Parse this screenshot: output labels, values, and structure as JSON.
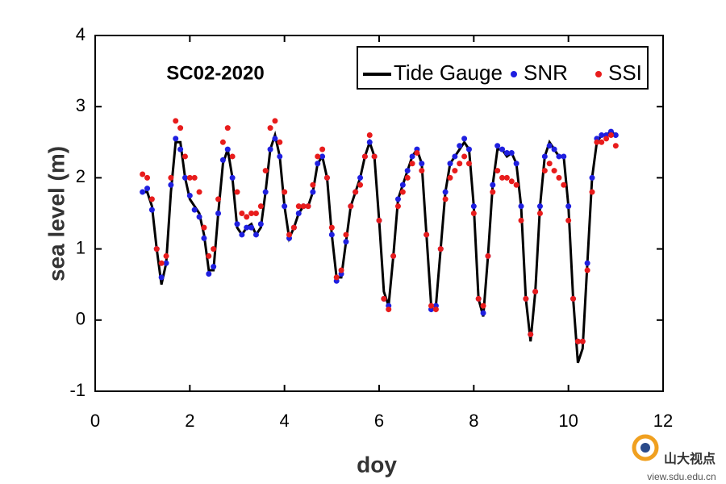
{
  "chart_data": {
    "type": "line-scatter",
    "title": "SC02-2020",
    "x_label": "doy",
    "y_label": "sea level (m)",
    "xlim": [
      0,
      12
    ],
    "xticks": [
      0,
      2,
      4,
      6,
      8,
      10,
      12
    ],
    "ylim": [
      -1,
      4
    ],
    "yticks": [
      -1,
      0,
      1,
      2,
      3,
      4
    ],
    "legend": "upper right",
    "x": [
      1.0,
      1.1,
      1.2,
      1.3,
      1.4,
      1.5,
      1.6,
      1.7,
      1.8,
      1.9,
      2.0,
      2.1,
      2.2,
      2.3,
      2.4,
      2.5,
      2.6,
      2.7,
      2.8,
      2.9,
      3.0,
      3.1,
      3.2,
      3.3,
      3.4,
      3.5,
      3.6,
      3.7,
      3.8,
      3.9,
      4.0,
      4.1,
      4.2,
      4.3,
      4.4,
      4.5,
      4.6,
      4.7,
      4.8,
      4.9,
      5.0,
      5.1,
      5.2,
      5.3,
      5.4,
      5.5,
      5.6,
      5.7,
      5.8,
      5.9,
      6.0,
      6.1,
      6.2,
      6.3,
      6.4,
      6.5,
      6.6,
      6.7,
      6.8,
      6.9,
      7.0,
      7.1,
      7.2,
      7.3,
      7.4,
      7.5,
      7.6,
      7.7,
      7.8,
      7.9,
      8.0,
      8.1,
      8.2,
      8.3,
      8.4,
      8.5,
      8.6,
      8.7,
      8.8,
      8.9,
      9.0,
      9.1,
      9.2,
      9.3,
      9.4,
      9.5,
      9.6,
      9.7,
      9.8,
      9.9,
      10.0,
      10.1,
      10.2,
      10.3,
      10.4,
      10.5,
      10.6,
      10.7,
      10.8,
      10.9,
      11.0
    ],
    "series": [
      {
        "name": "Tide Gauge",
        "kind": "line",
        "color": "#000000",
        "values": [
          1.8,
          1.8,
          1.6,
          1.0,
          0.5,
          0.8,
          1.8,
          2.5,
          2.5,
          2.0,
          1.7,
          1.6,
          1.5,
          1.2,
          0.7,
          0.7,
          1.5,
          2.2,
          2.4,
          2.0,
          1.3,
          1.2,
          1.3,
          1.35,
          1.2,
          1.3,
          1.8,
          2.4,
          2.6,
          2.3,
          1.6,
          1.15,
          1.3,
          1.5,
          1.6,
          1.6,
          1.8,
          2.2,
          2.3,
          2.0,
          1.2,
          0.6,
          0.6,
          1.1,
          1.6,
          1.8,
          2.0,
          2.3,
          2.5,
          2.3,
          1.4,
          0.4,
          0.2,
          0.9,
          1.7,
          1.9,
          2.1,
          2.3,
          2.4,
          2.2,
          1.2,
          0.2,
          0.2,
          1.0,
          1.8,
          2.2,
          2.3,
          2.4,
          2.5,
          2.4,
          1.6,
          0.3,
          0.05,
          0.9,
          1.9,
          2.4,
          2.4,
          2.3,
          2.35,
          2.2,
          1.6,
          0.3,
          -0.3,
          0.4,
          1.6,
          2.3,
          2.5,
          2.4,
          2.3,
          2.3,
          1.6,
          0.3,
          -0.6,
          -0.4,
          0.8,
          2.0,
          2.5,
          2.6,
          2.6,
          2.65,
          2.6
        ]
      },
      {
        "name": "SNR",
        "kind": "scatter",
        "color": "#1f1fe0",
        "values": [
          1.8,
          1.85,
          1.55,
          1.0,
          0.6,
          0.8,
          1.9,
          2.55,
          2.4,
          2.0,
          1.75,
          1.55,
          1.45,
          1.15,
          0.65,
          0.75,
          1.5,
          2.25,
          2.4,
          2.0,
          1.35,
          1.2,
          1.3,
          1.3,
          1.2,
          1.35,
          1.8,
          2.4,
          2.55,
          2.3,
          1.6,
          1.15,
          1.3,
          1.5,
          1.6,
          1.6,
          1.8,
          2.2,
          2.3,
          2.0,
          1.2,
          0.55,
          0.65,
          1.1,
          1.6,
          1.8,
          2.0,
          2.3,
          2.5,
          2.3,
          1.4,
          0.3,
          0.2,
          0.9,
          1.7,
          1.9,
          2.1,
          2.3,
          2.4,
          2.2,
          1.2,
          0.15,
          0.2,
          1.0,
          1.8,
          2.2,
          2.3,
          2.45,
          2.55,
          2.4,
          1.6,
          0.3,
          0.1,
          0.9,
          1.9,
          2.45,
          2.4,
          2.35,
          2.35,
          2.2,
          1.6,
          0.3,
          -0.2,
          0.4,
          1.6,
          2.3,
          2.45,
          2.4,
          2.3,
          2.3,
          1.6,
          0.3,
          -0.3,
          -0.3,
          0.8,
          2.0,
          2.55,
          2.6,
          2.6,
          2.65,
          2.6
        ]
      },
      {
        "name": "SSI",
        "kind": "scatter",
        "color": "#e81c1c",
        "values": [
          2.05,
          2.0,
          1.7,
          1.0,
          0.8,
          0.9,
          2.0,
          2.8,
          2.7,
          2.3,
          2.0,
          2.0,
          1.8,
          1.3,
          0.9,
          1.0,
          1.7,
          2.5,
          2.7,
          2.3,
          1.8,
          1.5,
          1.45,
          1.5,
          1.5,
          1.6,
          2.1,
          2.7,
          2.8,
          2.5,
          1.8,
          1.2,
          1.3,
          1.6,
          1.6,
          1.6,
          1.9,
          2.3,
          2.4,
          2.0,
          1.3,
          0.6,
          0.7,
          1.2,
          1.6,
          1.8,
          1.9,
          2.3,
          2.6,
          2.3,
          1.4,
          0.3,
          0.15,
          0.9,
          1.6,
          1.8,
          2.0,
          2.2,
          2.35,
          2.1,
          1.2,
          0.2,
          0.15,
          1.0,
          1.7,
          2.0,
          2.1,
          2.2,
          2.3,
          2.2,
          1.5,
          0.3,
          0.2,
          0.9,
          1.8,
          2.1,
          2.0,
          2.0,
          1.95,
          1.9,
          1.4,
          0.3,
          -0.2,
          0.4,
          1.5,
          2.1,
          2.2,
          2.1,
          2.0,
          1.9,
          1.4,
          0.3,
          -0.3,
          -0.3,
          0.7,
          1.8,
          2.5,
          2.5,
          2.55,
          2.6,
          2.45
        ]
      }
    ]
  },
  "watermark": {
    "name": "山大视点",
    "url": "view.sdu.edu.cn"
  }
}
